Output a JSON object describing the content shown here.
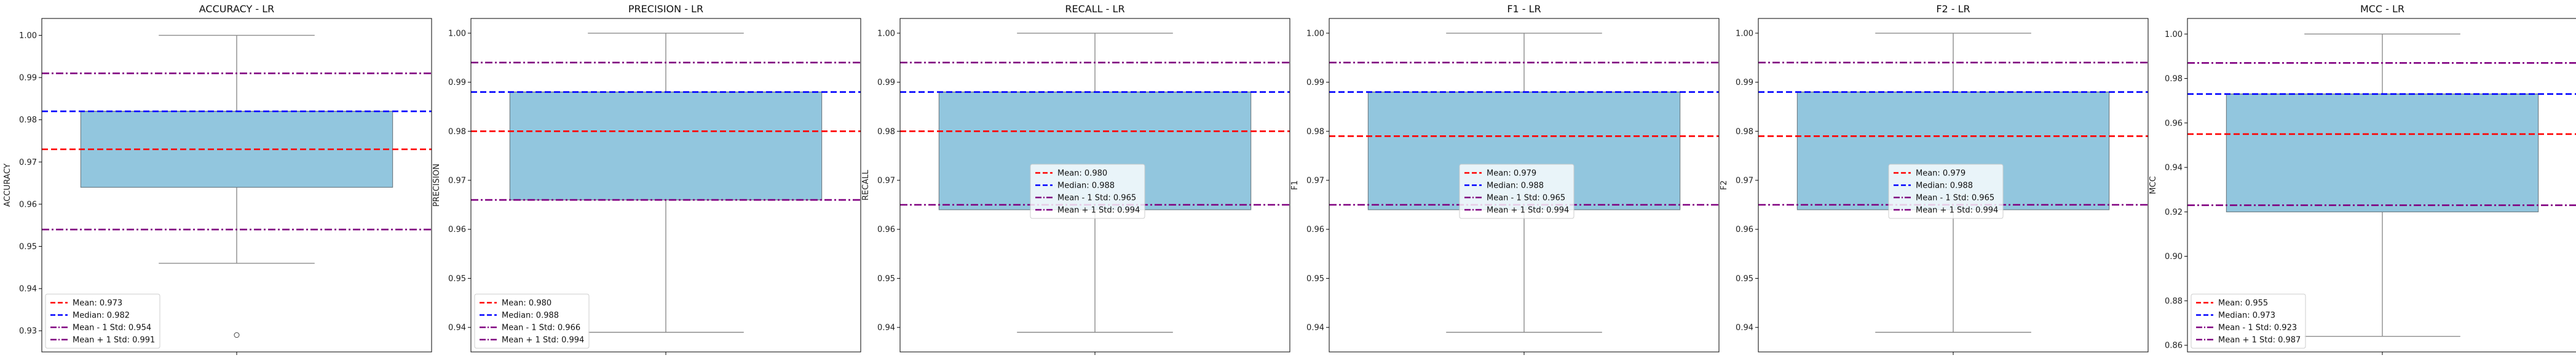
{
  "chart_data": [
    {
      "type": "box",
      "title": "ACCURACY - LR",
      "ylabel": "ACCURACY",
      "ylim": [
        0.925,
        1.004
      ],
      "yticks": [
        0.93,
        0.94,
        0.95,
        0.96,
        0.97,
        0.98,
        0.99,
        1.0
      ],
      "ytick_labels": [
        "0.93",
        "0.94",
        "0.95",
        "0.96",
        "0.97",
        "0.98",
        "0.99",
        "1.00"
      ],
      "box": {
        "whisker_low": 0.946,
        "q1": 0.964,
        "median": 0.982,
        "q3": 0.982,
        "whisker_high": 1.0,
        "outliers": [
          0.929
        ]
      },
      "lines": {
        "mean": 0.973,
        "median": 0.982,
        "minus_std": 0.954,
        "plus_std": 0.991
      },
      "legend": [
        "Mean: 0.973",
        "Median: 0.982",
        "Mean - 1 Std: 0.954",
        "Mean + 1 Std: 0.991"
      ],
      "legend_loc": "lower-left"
    },
    {
      "type": "box",
      "title": "PRECISION - LR",
      "ylabel": "PRECISION",
      "ylim": [
        0.935,
        1.003
      ],
      "yticks": [
        0.94,
        0.95,
        0.96,
        0.97,
        0.98,
        0.99,
        1.0
      ],
      "ytick_labels": [
        "0.94",
        "0.95",
        "0.96",
        "0.97",
        "0.98",
        "0.99",
        "1.00"
      ],
      "box": {
        "whisker_low": 0.939,
        "q1": 0.966,
        "median": 0.988,
        "q3": 0.988,
        "whisker_high": 1.0,
        "outliers": []
      },
      "lines": {
        "mean": 0.98,
        "median": 0.988,
        "minus_std": 0.966,
        "plus_std": 0.994
      },
      "legend": [
        "Mean: 0.980",
        "Median: 0.988",
        "Mean - 1 Std: 0.966",
        "Mean + 1 Std: 0.994"
      ],
      "legend_loc": "lower-left"
    },
    {
      "type": "box",
      "title": "RECALL - LR",
      "ylabel": "RECALL",
      "ylim": [
        0.935,
        1.003
      ],
      "yticks": [
        0.94,
        0.95,
        0.96,
        0.97,
        0.98,
        0.99,
        1.0
      ],
      "ytick_labels": [
        "0.94",
        "0.95",
        "0.96",
        "0.97",
        "0.98",
        "0.99",
        "1.00"
      ],
      "box": {
        "whisker_low": 0.939,
        "q1": 0.964,
        "median": 0.988,
        "q3": 0.988,
        "whisker_high": 1.0,
        "outliers": []
      },
      "lines": {
        "mean": 0.98,
        "median": 0.988,
        "minus_std": 0.965,
        "plus_std": 0.994
      },
      "legend": [
        "Mean: 0.980",
        "Median: 0.988",
        "Mean - 1 Std: 0.965",
        "Mean + 1 Std: 0.994"
      ],
      "legend_loc": "center"
    },
    {
      "type": "box",
      "title": "F1 - LR",
      "ylabel": "F1",
      "ylim": [
        0.935,
        1.003
      ],
      "yticks": [
        0.94,
        0.95,
        0.96,
        0.97,
        0.98,
        0.99,
        1.0
      ],
      "ytick_labels": [
        "0.94",
        "0.95",
        "0.96",
        "0.97",
        "0.98",
        "0.99",
        "1.00"
      ],
      "box": {
        "whisker_low": 0.939,
        "q1": 0.964,
        "median": 0.988,
        "q3": 0.988,
        "whisker_high": 1.0,
        "outliers": []
      },
      "lines": {
        "mean": 0.979,
        "median": 0.988,
        "minus_std": 0.965,
        "plus_std": 0.994
      },
      "legend": [
        "Mean: 0.979",
        "Median: 0.988",
        "Mean - 1 Std: 0.965",
        "Mean + 1 Std: 0.994"
      ],
      "legend_loc": "center"
    },
    {
      "type": "box",
      "title": "F2 - LR",
      "ylabel": "F2",
      "ylim": [
        0.935,
        1.003
      ],
      "yticks": [
        0.94,
        0.95,
        0.96,
        0.97,
        0.98,
        0.99,
        1.0
      ],
      "ytick_labels": [
        "0.94",
        "0.95",
        "0.96",
        "0.97",
        "0.98",
        "0.99",
        "1.00"
      ],
      "box": {
        "whisker_low": 0.939,
        "q1": 0.964,
        "median": 0.988,
        "q3": 0.988,
        "whisker_high": 1.0,
        "outliers": []
      },
      "lines": {
        "mean": 0.979,
        "median": 0.988,
        "minus_std": 0.965,
        "plus_std": 0.994
      },
      "legend": [
        "Mean: 0.979",
        "Median: 0.988",
        "Mean - 1 Std: 0.965",
        "Mean + 1 Std: 0.994"
      ],
      "legend_loc": "center"
    },
    {
      "type": "box",
      "title": "MCC - LR",
      "ylabel": "MCC",
      "ylim": [
        0.857,
        1.007
      ],
      "yticks": [
        0.86,
        0.88,
        0.9,
        0.92,
        0.94,
        0.96,
        0.98,
        1.0
      ],
      "ytick_labels": [
        "0.86",
        "0.88",
        "0.90",
        "0.92",
        "0.94",
        "0.96",
        "0.98",
        "1.00"
      ],
      "box": {
        "whisker_low": 0.864,
        "q1": 0.92,
        "median": 0.973,
        "q3": 0.973,
        "whisker_high": 1.0,
        "outliers": []
      },
      "lines": {
        "mean": 0.955,
        "median": 0.973,
        "minus_std": 0.923,
        "plus_std": 0.987
      },
      "legend": [
        "Mean: 0.955",
        "Median: 0.973",
        "Mean - 1 Std: 0.923",
        "Mean + 1 Std: 0.987"
      ],
      "legend_loc": "lower-left"
    }
  ],
  "colors": {
    "box_fill": "#92c6de",
    "box_edge": "#6f7f88",
    "whisker": "#8c8c8c",
    "mean_line": "#ff0000",
    "median_line": "#0000ff",
    "std_line": "#800080",
    "axes": "#000000"
  }
}
